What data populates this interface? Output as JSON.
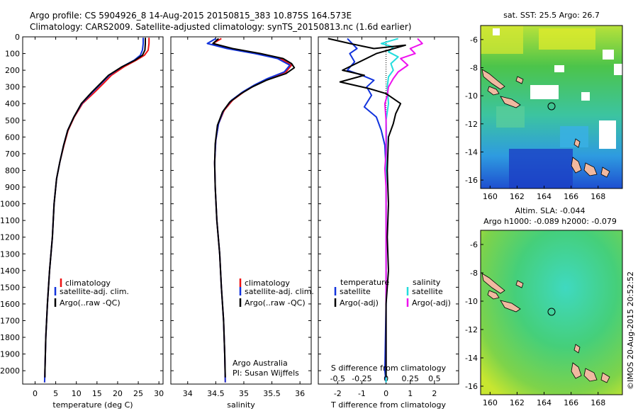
{
  "header": {
    "line1": "Argo profile: CS 5904926_8 14-Aug-2015 20150815_383 10.875S 164.573E",
    "line2": "Climatology: CARS2009. Satellite-adjusted climatology: synTS_20150813.nc (1.6d earlier)"
  },
  "colors": {
    "climatology": "#ee1111",
    "satellite": "#1133dd",
    "argo": "#000000",
    "sat_salinity": "#22dddd",
    "argo_adj_salinity": "#ee11ee"
  },
  "chart_data": [
    {
      "type": "line",
      "id": "temperature",
      "xlabel": "temperature (deg C)",
      "ylabel": "depth",
      "xlim": [
        -3,
        31
      ],
      "ylim": [
        2080,
        0
      ],
      "xticks": [
        0,
        5,
        10,
        15,
        20,
        25,
        30
      ],
      "yticks": [
        0,
        100,
        200,
        300,
        400,
        500,
        600,
        700,
        800,
        900,
        1000,
        1100,
        1200,
        1300,
        1400,
        1500,
        1600,
        1700,
        1800,
        1900,
        2000
      ],
      "legend": [
        "climatology",
        "satellite-adj. clim.",
        "Argo(..raw -QC)"
      ],
      "series": [
        {
          "name": "climatology",
          "color": "#ee1111",
          "points": [
            [
              27.6,
              5
            ],
            [
              27.6,
              40
            ],
            [
              27.4,
              80
            ],
            [
              26.5,
              110
            ],
            [
              24.5,
              140
            ],
            [
              21.5,
              180
            ],
            [
              18.5,
              230
            ],
            [
              16.5,
              280
            ],
            [
              14.5,
              330
            ],
            [
              11.5,
              400
            ],
            [
              9.5,
              480
            ],
            [
              8.0,
              560
            ],
            [
              7.0,
              650
            ],
            [
              6.0,
              750
            ],
            [
              5.2,
              850
            ],
            [
              4.6,
              1000
            ],
            [
              4.2,
              1200
            ],
            [
              3.5,
              1400
            ],
            [
              3.0,
              1600
            ],
            [
              2.6,
              1800
            ],
            [
              2.4,
              2000
            ],
            [
              2.3,
              2070
            ]
          ]
        },
        {
          "name": "satellite-adj. clim.",
          "color": "#1133dd",
          "points": [
            [
              26.2,
              5
            ],
            [
              26.2,
              40
            ],
            [
              26.0,
              80
            ],
            [
              25.5,
              110
            ],
            [
              24.0,
              140
            ],
            [
              21.0,
              180
            ],
            [
              18.0,
              230
            ],
            [
              16.0,
              280
            ],
            [
              14.0,
              330
            ],
            [
              11.3,
              400
            ],
            [
              9.4,
              480
            ],
            [
              7.9,
              560
            ],
            [
              6.9,
              650
            ],
            [
              6.0,
              750
            ],
            [
              5.2,
              850
            ],
            [
              4.6,
              1000
            ],
            [
              4.2,
              1200
            ],
            [
              3.5,
              1400
            ],
            [
              3.0,
              1600
            ],
            [
              2.6,
              1800
            ],
            [
              2.4,
              2000
            ],
            [
              2.3,
              2070
            ]
          ]
        },
        {
          "name": "Argo(..raw -QC)",
          "color": "#000000",
          "points": [
            [
              26.7,
              5
            ],
            [
              26.7,
              40
            ],
            [
              26.6,
              80
            ],
            [
              26.0,
              110
            ],
            [
              24.2,
              140
            ],
            [
              21.0,
              180
            ],
            [
              17.8,
              230
            ],
            [
              15.8,
              280
            ],
            [
              13.8,
              330
            ],
            [
              11.2,
              400
            ],
            [
              9.4,
              480
            ],
            [
              7.9,
              560
            ],
            [
              6.9,
              650
            ],
            [
              6.0,
              750
            ],
            [
              5.2,
              850
            ],
            [
              4.6,
              1000
            ],
            [
              4.2,
              1200
            ],
            [
              3.5,
              1400
            ],
            [
              3.0,
              1600
            ],
            [
              2.6,
              1800
            ],
            [
              2.4,
              2000
            ],
            [
              2.4,
              2040
            ]
          ]
        }
      ]
    },
    {
      "type": "line",
      "id": "salinity",
      "xlabel": "salinity",
      "xlim": [
        33.7,
        36.2
      ],
      "ylim": [
        2080,
        0
      ],
      "xticks": [
        34,
        34.5,
        35,
        35.5,
        36
      ],
      "legend": [
        "climatology",
        "satellite-adj. clim.",
        "Argo(..raw -QC)"
      ],
      "annotation": [
        "Argo Australia",
        "PI: Susan Wijffels"
      ],
      "series": [
        {
          "name": "climatology",
          "color": "#ee1111",
          "points": [
            [
              34.6,
              10
            ],
            [
              34.45,
              40
            ],
            [
              34.75,
              70
            ],
            [
              35.25,
              100
            ],
            [
              35.65,
              130
            ],
            [
              35.85,
              170
            ],
            [
              35.75,
              210
            ],
            [
              35.45,
              250
            ],
            [
              35.2,
              290
            ],
            [
              35.0,
              330
            ],
            [
              34.8,
              380
            ],
            [
              34.65,
              440
            ],
            [
              34.55,
              520
            ],
            [
              34.5,
              620
            ],
            [
              34.48,
              750
            ],
            [
              34.49,
              900
            ],
            [
              34.52,
              1100
            ],
            [
              34.57,
              1300
            ],
            [
              34.6,
              1500
            ],
            [
              34.64,
              1700
            ],
            [
              34.66,
              1900
            ],
            [
              34.67,
              2070
            ]
          ]
        },
        {
          "name": "satellite-adj. clim.",
          "color": "#1133dd",
          "points": [
            [
              34.5,
              10
            ],
            [
              34.35,
              40
            ],
            [
              34.7,
              70
            ],
            [
              35.2,
              100
            ],
            [
              35.6,
              130
            ],
            [
              35.82,
              170
            ],
            [
              35.72,
              210
            ],
            [
              35.42,
              250
            ],
            [
              35.18,
              290
            ],
            [
              34.98,
              330
            ],
            [
              34.78,
              380
            ],
            [
              34.64,
              440
            ],
            [
              34.55,
              520
            ],
            [
              34.5,
              620
            ],
            [
              34.48,
              750
            ],
            [
              34.49,
              900
            ],
            [
              34.52,
              1100
            ],
            [
              34.57,
              1300
            ],
            [
              34.6,
              1500
            ],
            [
              34.64,
              1700
            ],
            [
              34.66,
              1900
            ],
            [
              34.67,
              2070
            ]
          ]
        },
        {
          "name": "Argo(..raw -QC)",
          "color": "#000000",
          "points": [
            [
              34.55,
              10
            ],
            [
              34.45,
              40
            ],
            [
              34.8,
              70
            ],
            [
              35.3,
              100
            ],
            [
              35.7,
              130
            ],
            [
              35.85,
              160
            ],
            [
              35.9,
              185
            ],
            [
              35.75,
              220
            ],
            [
              35.4,
              260
            ],
            [
              35.15,
              300
            ],
            [
              34.95,
              340
            ],
            [
              34.75,
              390
            ],
            [
              34.62,
              450
            ],
            [
              34.53,
              530
            ],
            [
              34.49,
              640
            ],
            [
              34.48,
              760
            ],
            [
              34.49,
              900
            ],
            [
              34.52,
              1100
            ],
            [
              34.57,
              1300
            ],
            [
              34.6,
              1500
            ],
            [
              34.64,
              1700
            ],
            [
              34.66,
              1900
            ],
            [
              34.67,
              2040
            ]
          ]
        }
      ]
    },
    {
      "type": "line",
      "id": "difference",
      "xlabel": "T difference from climatology",
      "xlabel_top": "S difference from climatology",
      "xlim": [
        -2.8,
        3.0
      ],
      "ylim": [
        2080,
        0
      ],
      "xticks": [
        -2,
        -1,
        0,
        1,
        2
      ],
      "xticks_s": [
        "-0.5",
        "-0.25",
        "0",
        "0.25",
        "0.5"
      ],
      "legend": {
        "temperature": "temperature",
        "salinity": "salinity",
        "satellite": "satellite",
        "argo_adj": "Argo(-adj)"
      },
      "series": [
        {
          "name": "temperature satellite",
          "color": "#1133dd",
          "points": [
            [
              -1.6,
              10
            ],
            [
              -1.4,
              40
            ],
            [
              -1.2,
              70
            ],
            [
              -1.5,
              100
            ],
            [
              -1.3,
              150
            ],
            [
              -1.6,
              200
            ],
            [
              -1.0,
              230
            ],
            [
              -0.5,
              260
            ],
            [
              -0.8,
              300
            ],
            [
              -0.6,
              350
            ],
            [
              -0.9,
              420
            ],
            [
              -0.4,
              480
            ],
            [
              -0.2,
              560
            ],
            [
              -0.05,
              650
            ],
            [
              0.0,
              800
            ],
            [
              0.0,
              1200
            ],
            [
              0.0,
              1600
            ],
            [
              -0.05,
              2000
            ],
            [
              0.0,
              2070
            ]
          ]
        },
        {
          "name": "salinity satellite",
          "color": "#22dddd",
          "points": [
            [
              0.5,
              10
            ],
            [
              -0.2,
              40
            ],
            [
              0.3,
              60
            ],
            [
              0.1,
              90
            ],
            [
              0.5,
              120
            ],
            [
              0.2,
              160
            ],
            [
              0.3,
              200
            ],
            [
              0.1,
              240
            ],
            [
              0.05,
              300
            ],
            [
              0.1,
              400
            ],
            [
              0.0,
              500
            ],
            [
              0.02,
              600
            ],
            [
              0.0,
              800
            ],
            [
              0.0,
              1200
            ],
            [
              0.0,
              1600
            ],
            [
              0.0,
              2000
            ],
            [
              0.0,
              2070
            ]
          ]
        },
        {
          "name": "salinity Argo(-adj)",
          "color": "#ee11ee",
          "points": [
            [
              1.3,
              10
            ],
            [
              1.5,
              40
            ],
            [
              1.0,
              70
            ],
            [
              1.2,
              100
            ],
            [
              0.6,
              130
            ],
            [
              0.9,
              170
            ],
            [
              0.5,
              210
            ],
            [
              0.3,
              250
            ],
            [
              0.1,
              300
            ],
            [
              0.05,
              350
            ],
            [
              -0.05,
              400
            ],
            [
              0.0,
              500
            ],
            [
              0.0,
              700
            ],
            [
              -0.05,
              790
            ],
            [
              0.0,
              900
            ],
            [
              0.0,
              1200
            ],
            [
              0.0,
              1600
            ],
            [
              0.0,
              2000
            ]
          ]
        },
        {
          "name": "temperature Argo(-adj)",
          "color": "#000000",
          "points": [
            [
              -2.4,
              10
            ],
            [
              -1.5,
              40
            ],
            [
              -0.5,
              70
            ],
            [
              0.8,
              50
            ],
            [
              -0.4,
              100
            ],
            [
              -1.8,
              200
            ],
            [
              -0.9,
              230
            ],
            [
              -1.9,
              270
            ],
            [
              -0.7,
              310
            ],
            [
              0.0,
              340
            ],
            [
              0.6,
              400
            ],
            [
              0.4,
              460
            ],
            [
              0.3,
              520
            ],
            [
              0.1,
              600
            ],
            [
              0.05,
              800
            ],
            [
              0.1,
              1000
            ],
            [
              0.05,
              1200
            ],
            [
              0.1,
              1400
            ],
            [
              0.0,
              1600
            ],
            [
              0.0,
              1800
            ],
            [
              0.0,
              2040
            ]
          ]
        }
      ]
    },
    {
      "type": "heatmap",
      "id": "sst-map",
      "title": "sat. SST: 25.5  Argo: 26.7",
      "xticks": [
        160,
        162,
        164,
        166,
        168
      ],
      "yticks": [
        -6,
        -8,
        -10,
        -12,
        -14,
        -16
      ],
      "xlim": [
        159.3,
        169.8
      ],
      "ylim": [
        -16.6,
        -5.0
      ],
      "marker": [
        164.6,
        -10.9
      ]
    },
    {
      "type": "heatmap",
      "id": "sla-map",
      "title": "Altim. SLA: -0.044",
      "subtitle": "Argo h1000: -0.089  h2000: -0.079",
      "xticks": [
        160,
        162,
        164,
        166,
        168
      ],
      "yticks": [
        -6,
        -8,
        -10,
        -12,
        -14,
        -16
      ],
      "xlim": [
        159.3,
        169.8
      ],
      "ylim": [
        -16.6,
        -5.0
      ],
      "marker": [
        164.6,
        -10.9
      ]
    }
  ],
  "footer": {
    "imos_stamp": "©IMOS 20-Aug-2015 20:52:52"
  }
}
